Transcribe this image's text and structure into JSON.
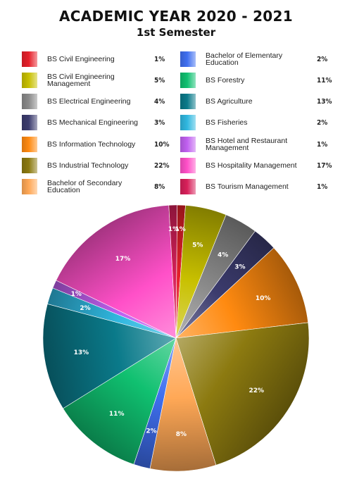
{
  "title": "ACADEMIC YEAR 2020 - 2021",
  "subtitle": "1st Semester",
  "chart_data": {
    "type": "pie",
    "title": "ACADEMIC YEAR 2020 - 2021",
    "subtitle": "1st Semester",
    "value_unit": "%",
    "legend_position": "top",
    "slices": [
      {
        "label": "BS Civil Engineering",
        "value": 1,
        "color": "#e6202a"
      },
      {
        "label": "BS Civil Engineering Management",
        "value": 5,
        "color": "#c8c000"
      },
      {
        "label": "BS Electrical Engineering",
        "value": 4,
        "color": "#8a8a8a"
      },
      {
        "label": "BS Mechanical Engineering",
        "value": 3,
        "color": "#3c3c6e"
      },
      {
        "label": "BS Information Technology",
        "value": 10,
        "color": "#ff8a10"
      },
      {
        "label": "BS Industrial Technology",
        "value": 22,
        "color": "#8c7a10"
      },
      {
        "label": "Bachelor of Secondary Education",
        "value": 8,
        "color": "#ffa856"
      },
      {
        "label": "Bachelor of Elementary Education",
        "value": 2,
        "color": "#3f6ff0"
      },
      {
        "label": "BS Forestry",
        "value": 11,
        "color": "#10c070"
      },
      {
        "label": "BS Agriculture",
        "value": 13,
        "color": "#0a7a8a"
      },
      {
        "label": "BS Fisheries",
        "value": 2,
        "color": "#30b8e0"
      },
      {
        "label": "BS Hotel and Restaurant Management",
        "value": 1,
        "color": "#c060f0"
      },
      {
        "label": "BS Hospitality Management",
        "value": 17,
        "color": "#ff50c8"
      },
      {
        "label": "BS Tourism Management",
        "value": 1,
        "color": "#d8205a"
      }
    ]
  },
  "legend": {
    "left": [
      {
        "label": "BS Civil Engineering",
        "pct": "1%",
        "color": "#e6202a"
      },
      {
        "label": "BS Civil Engineering Management",
        "pct": "5%",
        "color": "#c8c000"
      },
      {
        "label": "BS Electrical Engineering",
        "pct": "4%",
        "color": "#8a8a8a"
      },
      {
        "label": "BS Mechanical Engineering",
        "pct": "3%",
        "color": "#3c3c6e"
      },
      {
        "label": "BS Information Technology",
        "pct": "10%",
        "color": "#ff8a10"
      },
      {
        "label": "BS Industrial Technology",
        "pct": "22%",
        "color": "#8c7a10"
      },
      {
        "label": "Bachelor of Secondary Education",
        "pct": "8%",
        "color": "#ffa856"
      }
    ],
    "right": [
      {
        "label": "Bachelor of Elementary Education",
        "pct": "2%",
        "color": "#3f6ff0"
      },
      {
        "label": "BS Forestry",
        "pct": "11%",
        "color": "#10c070"
      },
      {
        "label": "BS Agriculture",
        "pct": "13%",
        "color": "#0a7a8a"
      },
      {
        "label": "BS Fisheries",
        "pct": "2%",
        "color": "#30b8e0"
      },
      {
        "label": "BS Hotel and Restaurant Management",
        "pct": "1%",
        "color": "#c060f0"
      },
      {
        "label": "BS Hospitality Management",
        "pct": "17%",
        "color": "#ff50c8"
      },
      {
        "label": "BS Tourism Management",
        "pct": "1%",
        "color": "#d8205a"
      }
    ]
  }
}
